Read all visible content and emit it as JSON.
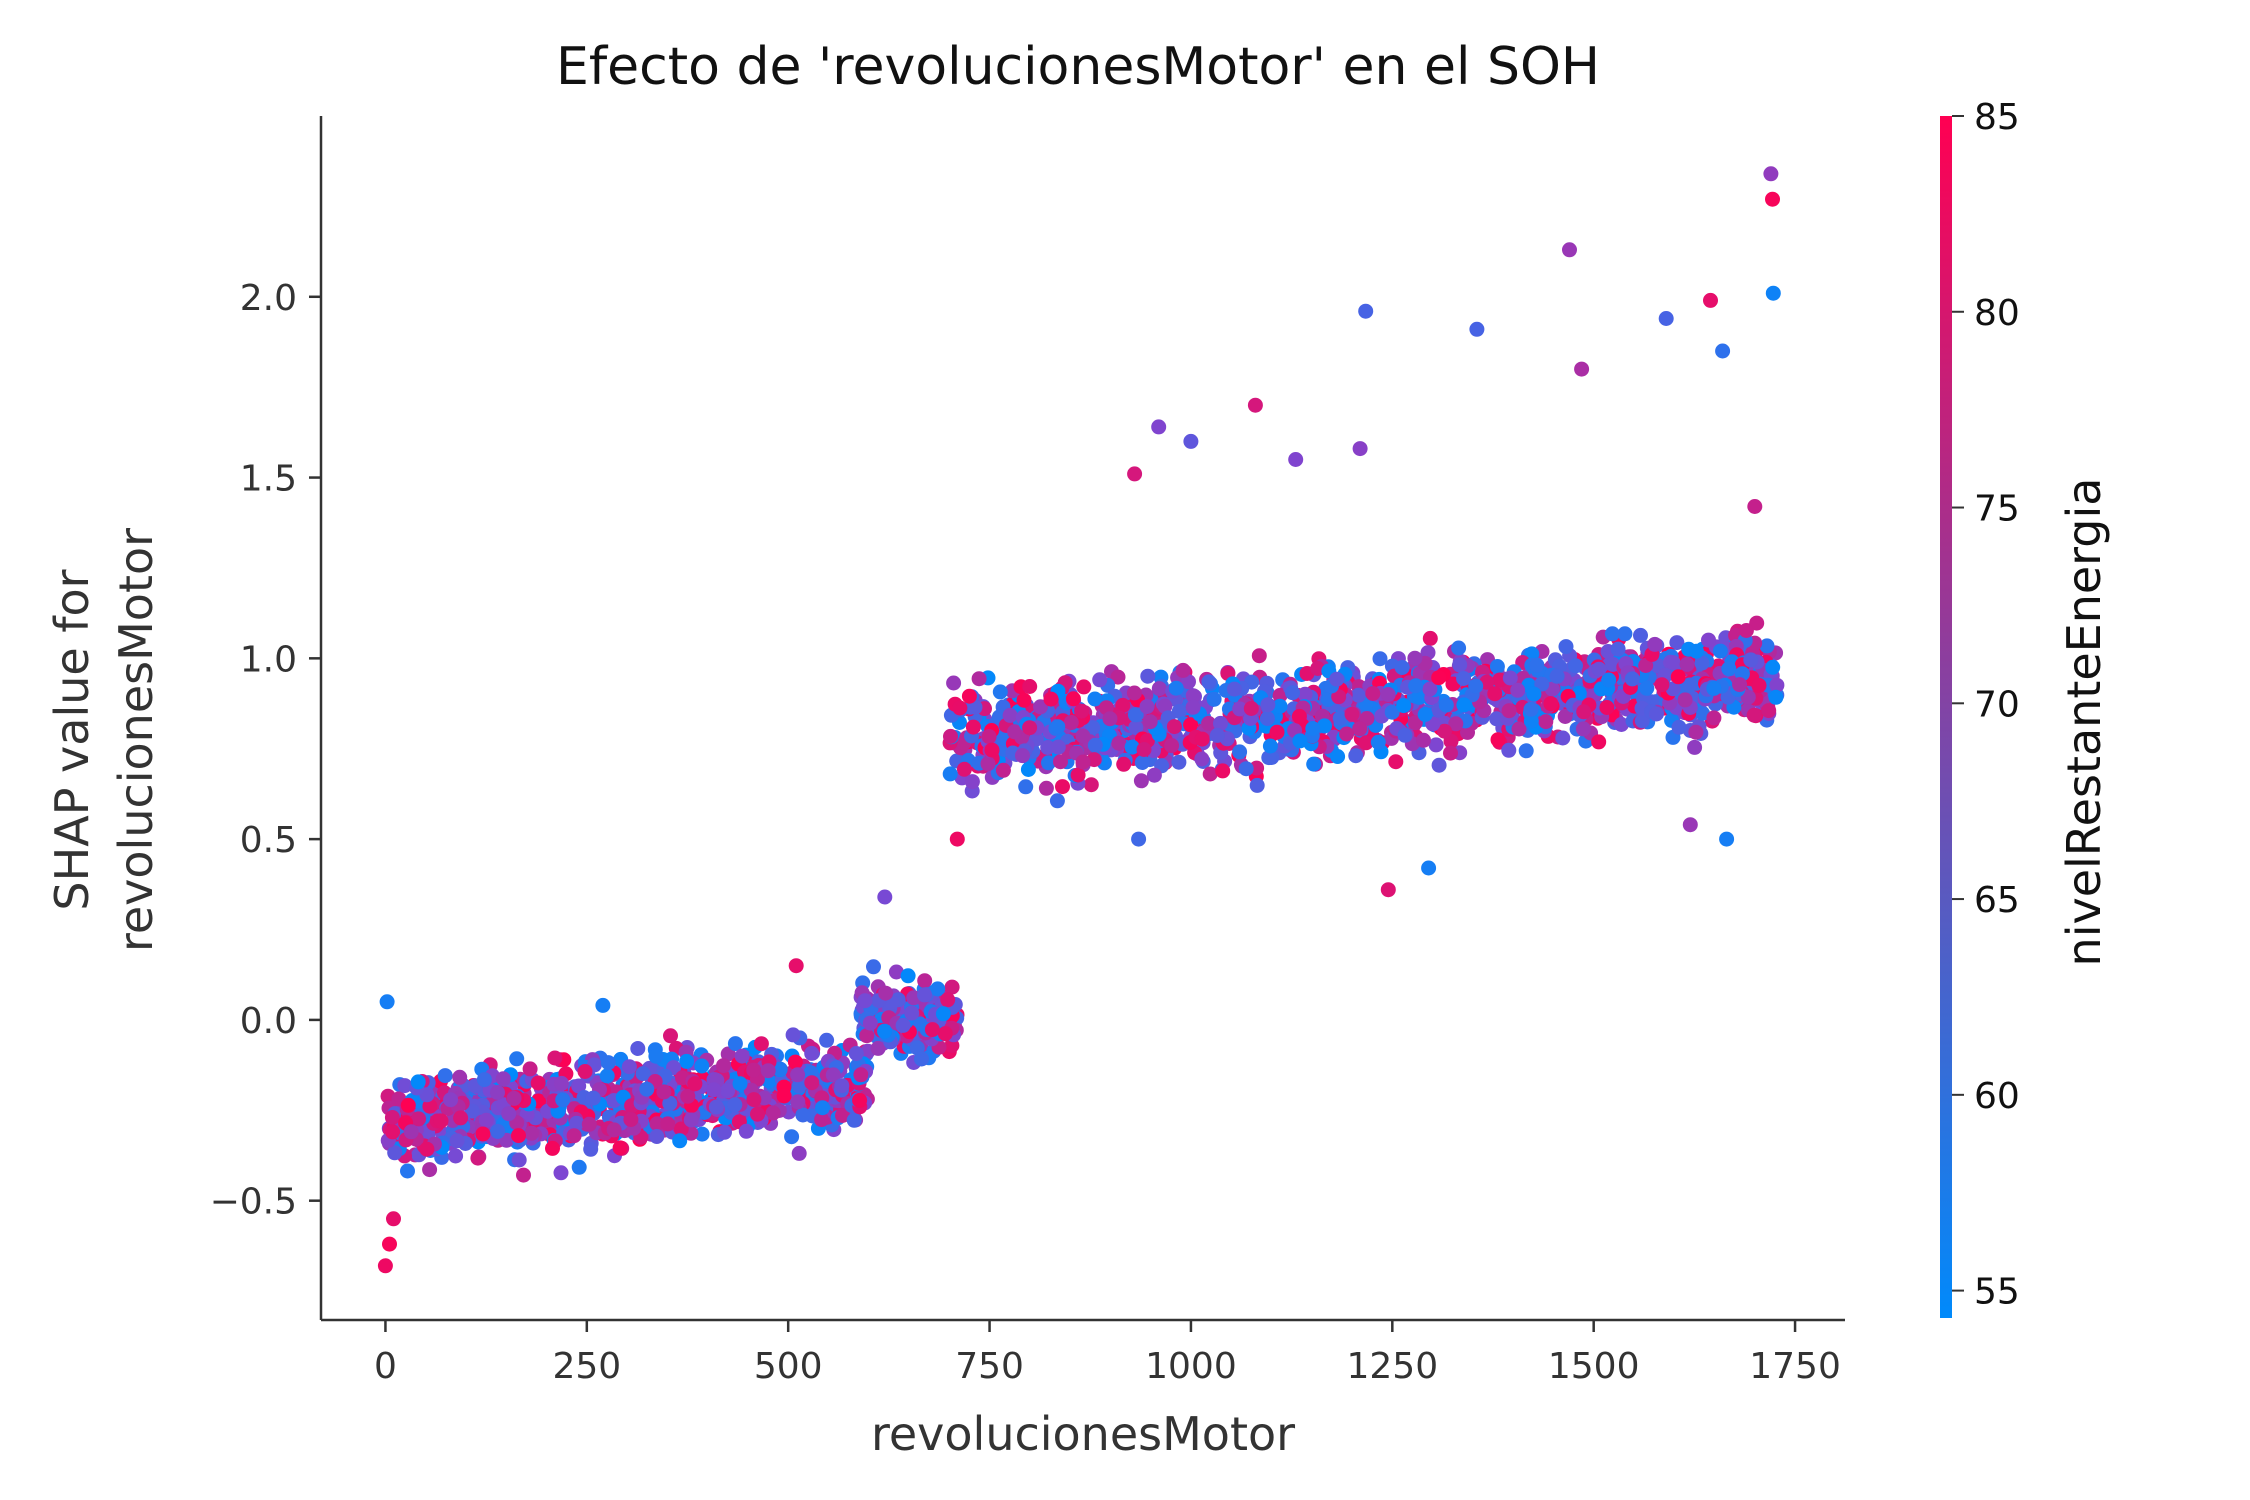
{
  "chart_data": {
    "type": "scatter",
    "title": "Efecto de 'revolucionesMotor' en el SOH",
    "xlabel": "revolucionesMotor",
    "ylabel_lines": [
      "SHAP value for",
      "revolucionesMotor"
    ],
    "xlim": [
      -80,
      1812
    ],
    "ylim": [
      -0.83,
      2.5
    ],
    "x_ticks": [
      0,
      250,
      500,
      750,
      1000,
      1250,
      1500,
      1750
    ],
    "x_tick_labels": [
      "0",
      "250",
      "500",
      "750",
      "1000",
      "1250",
      "1500",
      "1750"
    ],
    "y_ticks": [
      -0.5,
      0.0,
      0.5,
      1.0,
      1.5,
      2.0
    ],
    "y_tick_labels": [
      "−0.5",
      "0.0",
      "0.5",
      "1.0",
      "1.5",
      "2.0"
    ],
    "grid": false,
    "colorbar": {
      "label": "nivelRestanteEnergia",
      "range": [
        54.3,
        85
      ],
      "ticks": [
        55,
        60,
        65,
        70,
        75,
        80,
        85
      ],
      "tick_labels": [
        "55",
        "60",
        "65",
        "70",
        "75",
        "80",
        "85"
      ],
      "colors": [
        "#008afb",
        "#ff0052"
      ]
    },
    "clusters": [
      {
        "x_range": [
          0,
          600
        ],
        "y_center_start": -0.28,
        "y_center_end": -0.17,
        "y_spread": 0.14,
        "count": 900
      },
      {
        "x_range": [
          590,
          710
        ],
        "y_center_start": 0.02,
        "y_center_end": 0.0,
        "y_spread": 0.1,
        "count": 220
      },
      {
        "x_range": [
          700,
          1728
        ],
        "y_center_start": 0.78,
        "y_center_end": 0.95,
        "y_spread": 0.15,
        "count": 1400
      }
    ],
    "points": [
      {
        "x": 0,
        "y": -0.68,
        "c": 83
      },
      {
        "x": 5,
        "y": -0.62,
        "c": 84
      },
      {
        "x": 10,
        "y": -0.55,
        "c": 82
      },
      {
        "x": 2,
        "y": 0.05,
        "c": 57
      },
      {
        "x": 270,
        "y": 0.04,
        "c": 57
      },
      {
        "x": 620,
        "y": 0.34,
        "c": 69
      },
      {
        "x": 510,
        "y": 0.15,
        "c": 82
      },
      {
        "x": 1245,
        "y": 0.36,
        "c": 81
      },
      {
        "x": 1295,
        "y": 0.42,
        "c": 57
      },
      {
        "x": 1080,
        "y": 1.7,
        "c": 80
      },
      {
        "x": 1217,
        "y": 1.96,
        "c": 63
      },
      {
        "x": 1355,
        "y": 1.91,
        "c": 63
      },
      {
        "x": 1470,
        "y": 2.13,
        "c": 73
      },
      {
        "x": 1645,
        "y": 1.99,
        "c": 82
      },
      {
        "x": 1720,
        "y": 2.34,
        "c": 72
      },
      {
        "x": 1722,
        "y": 2.27,
        "c": 84
      },
      {
        "x": 1723,
        "y": 2.01,
        "c": 56
      },
      {
        "x": 1665,
        "y": 0.5,
        "c": 57
      },
      {
        "x": 1620,
        "y": 0.54,
        "c": 73
      },
      {
        "x": 935,
        "y": 0.5,
        "c": 62
      },
      {
        "x": 710,
        "y": 0.5,
        "c": 83
      },
      {
        "x": 930,
        "y": 1.51,
        "c": 80
      },
      {
        "x": 960,
        "y": 1.64,
        "c": 70
      },
      {
        "x": 1210,
        "y": 1.58,
        "c": 71
      },
      {
        "x": 1485,
        "y": 1.8,
        "c": 75
      },
      {
        "x": 1590,
        "y": 1.94,
        "c": 63
      },
      {
        "x": 1660,
        "y": 1.85,
        "c": 60
      },
      {
        "x": 1700,
        "y": 1.42,
        "c": 78
      },
      {
        "x": 1000,
        "y": 1.6,
        "c": 66
      },
      {
        "x": 1130,
        "y": 1.55,
        "c": 70
      }
    ]
  }
}
